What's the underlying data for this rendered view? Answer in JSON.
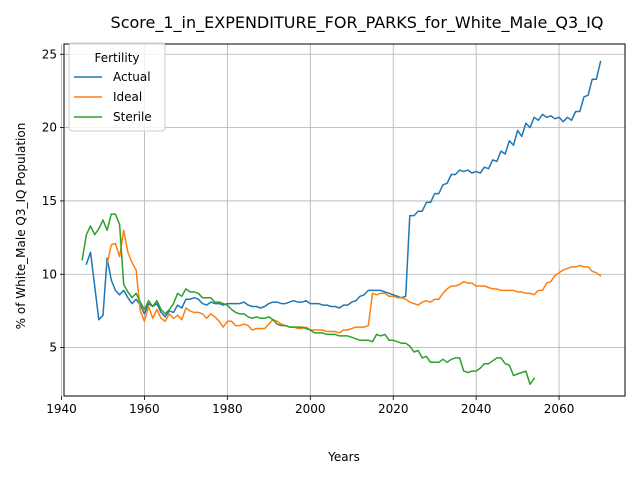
{
  "chart_data": {
    "type": "line",
    "title": "Score_1_in_EXPENDITURE_FOR_PARKS_for_White_Male_Q3_IQ",
    "xlabel": "Years",
    "ylabel": "% of White_Male Q3_IQ Population",
    "xlim": [
      1940.6,
      2075.9
    ],
    "ylim": [
      1.7,
      25.7
    ],
    "xticks": [
      1940,
      1960,
      1980,
      2000,
      2020,
      2040,
      2060
    ],
    "yticks": [
      5,
      10,
      15,
      20,
      25
    ],
    "grid": true,
    "legend": {
      "title": "Fertility",
      "placement": "upper-left"
    },
    "series": [
      {
        "name": "Actual",
        "color": "#1f77b4",
        "x": [
          1946,
          1947,
          1948,
          1949,
          1950,
          1951,
          1952,
          1953,
          1954,
          1955,
          1956,
          1957,
          1958,
          1959,
          1960,
          1961,
          1962,
          1963,
          1964,
          1965,
          1966,
          1967,
          1968,
          1969,
          1970,
          1971,
          1972,
          1973,
          1974,
          1975,
          1976,
          1977,
          1978,
          1979,
          1980,
          1981,
          1982,
          1983,
          1984,
          1985,
          1986,
          1987,
          1988,
          1989,
          1990,
          1991,
          1992,
          1993,
          1994,
          1995,
          1996,
          1997,
          1998,
          1999,
          2000,
          2001,
          2002,
          2003,
          2004,
          2005,
          2006,
          2007,
          2008,
          2009,
          2010,
          2011,
          2012,
          2013,
          2014,
          2015,
          2016,
          2017,
          2018,
          2019,
          2020,
          2021,
          2022,
          2023,
          2024,
          2025,
          2026,
          2027,
          2028,
          2029,
          2030,
          2031,
          2032,
          2033,
          2034,
          2035,
          2036,
          2037,
          2038,
          2039,
          2040,
          2041,
          2042,
          2043,
          2044,
          2045,
          2046,
          2047,
          2048,
          2049,
          2050,
          2051,
          2052,
          2053,
          2054,
          2055,
          2056,
          2057,
          2058,
          2059,
          2060,
          2061,
          2062,
          2063,
          2064,
          2065,
          2066,
          2067,
          2068,
          2069,
          2070
        ],
        "y": [
          10.7,
          11.5,
          9.2,
          6.9,
          7.2,
          11.1,
          9.6,
          8.9,
          8.6,
          8.9,
          8.4,
          8.0,
          8.3,
          7.9,
          7.3,
          8.0,
          7.8,
          8.0,
          7.4,
          7.1,
          7.5,
          7.4,
          7.9,
          7.7,
          8.3,
          8.3,
          8.4,
          8.3,
          8.0,
          7.9,
          8.1,
          8.0,
          8.0,
          7.9,
          8.0,
          8.0,
          8.0,
          8.0,
          8.1,
          7.9,
          7.8,
          7.8,
          7.7,
          7.8,
          8.0,
          8.1,
          8.1,
          8.0,
          8.0,
          8.1,
          8.2,
          8.1,
          8.1,
          8.2,
          8.0,
          8.0,
          8.0,
          7.9,
          7.9,
          7.8,
          7.8,
          7.7,
          7.9,
          7.9,
          8.1,
          8.2,
          8.5,
          8.6,
          8.9,
          8.9,
          8.9,
          8.9,
          8.8,
          8.7,
          8.6,
          8.5,
          8.4,
          8.5,
          14.0,
          14.0,
          14.3,
          14.3,
          14.9,
          14.9,
          15.5,
          15.5,
          16.1,
          16.2,
          16.8,
          16.8,
          17.1,
          17.0,
          17.1,
          16.9,
          17.0,
          16.9,
          17.3,
          17.2,
          17.8,
          17.7,
          18.4,
          18.2,
          19.1,
          18.8,
          19.8,
          19.4,
          20.3,
          20.0,
          20.7,
          20.5,
          20.9,
          20.7,
          20.8,
          20.6,
          20.7,
          20.4,
          20.7,
          20.5,
          21.1,
          21.1,
          22.1,
          22.2,
          23.3,
          23.3,
          24.5
        ]
      },
      {
        "name": "Ideal",
        "color": "#ff7f0e",
        "x": [
          1951,
          1952,
          1953,
          1954,
          1955,
          1956,
          1957,
          1958,
          1959,
          1960,
          1961,
          1962,
          1963,
          1964,
          1965,
          1966,
          1967,
          1968,
          1969,
          1970,
          1971,
          1972,
          1973,
          1974,
          1975,
          1976,
          1977,
          1978,
          1979,
          1980,
          1981,
          1982,
          1983,
          1984,
          1985,
          1986,
          1987,
          1988,
          1989,
          1990,
          1991,
          1992,
          1993,
          1994,
          1995,
          1996,
          1997,
          1998,
          1999,
          2000,
          2001,
          2002,
          2003,
          2004,
          2005,
          2006,
          2007,
          2008,
          2009,
          2010,
          2011,
          2012,
          2013,
          2014,
          2015,
          2016,
          2017,
          2018,
          2019,
          2020,
          2021,
          2022,
          2023,
          2024,
          2025,
          2026,
          2027,
          2028,
          2029,
          2030,
          2031,
          2032,
          2033,
          2034,
          2035,
          2036,
          2037,
          2038,
          2039,
          2040,
          2041,
          2042,
          2043,
          2044,
          2045,
          2046,
          2047,
          2048,
          2049,
          2050,
          2051,
          2052,
          2053,
          2054,
          2055,
          2056,
          2057,
          2058,
          2059,
          2060,
          2061,
          2062,
          2063,
          2064,
          2065,
          2066,
          2067,
          2068,
          2069,
          2070
        ],
        "y": [
          10.7,
          12.0,
          12.1,
          11.2,
          13.0,
          11.5,
          10.8,
          10.3,
          7.5,
          6.8,
          7.8,
          7.0,
          7.6,
          7.0,
          6.8,
          7.3,
          7.0,
          7.2,
          6.9,
          7.7,
          7.5,
          7.4,
          7.4,
          7.3,
          7.0,
          7.3,
          7.1,
          6.8,
          6.4,
          6.8,
          6.8,
          6.5,
          6.5,
          6.6,
          6.5,
          6.2,
          6.3,
          6.3,
          6.3,
          6.6,
          6.9,
          6.8,
          6.6,
          6.5,
          6.4,
          6.4,
          6.3,
          6.3,
          6.4,
          6.2,
          6.2,
          6.2,
          6.2,
          6.1,
          6.1,
          6.1,
          6.0,
          6.2,
          6.2,
          6.3,
          6.4,
          6.4,
          6.4,
          6.5,
          8.7,
          8.6,
          8.7,
          8.7,
          8.5,
          8.5,
          8.4,
          8.4,
          8.3,
          8.1,
          8.0,
          7.9,
          8.1,
          8.2,
          8.1,
          8.3,
          8.3,
          8.7,
          9.0,
          9.2,
          9.2,
          9.3,
          9.5,
          9.4,
          9.4,
          9.2,
          9.2,
          9.2,
          9.1,
          9.0,
          9.0,
          8.9,
          8.9,
          8.9,
          8.9,
          8.8,
          8.8,
          8.7,
          8.7,
          8.6,
          8.9,
          8.9,
          9.4,
          9.5,
          9.9,
          10.1,
          10.3,
          10.4,
          10.5,
          10.5,
          10.6,
          10.5,
          10.5,
          10.2,
          10.1,
          9.9
        ]
      },
      {
        "name": "Sterile",
        "color": "#2ca02c",
        "x": [
          1945,
          1946,
          1947,
          1948,
          1949,
          1950,
          1951,
          1952,
          1953,
          1954,
          1955,
          1956,
          1957,
          1958,
          1959,
          1960,
          1961,
          1962,
          1963,
          1964,
          1965,
          1966,
          1967,
          1968,
          1969,
          1970,
          1971,
          1972,
          1973,
          1974,
          1975,
          1976,
          1977,
          1978,
          1979,
          1980,
          1981,
          1982,
          1983,
          1984,
          1985,
          1986,
          1987,
          1988,
          1989,
          1990,
          1991,
          1992,
          1993,
          1994,
          1995,
          1996,
          1997,
          1998,
          1999,
          2000,
          2001,
          2002,
          2003,
          2004,
          2005,
          2006,
          2007,
          2008,
          2009,
          2010,
          2011,
          2012,
          2013,
          2014,
          2015,
          2016,
          2017,
          2018,
          2019,
          2020,
          2021,
          2022,
          2023,
          2024,
          2025,
          2026,
          2027,
          2028,
          2029,
          2030,
          2031,
          2032,
          2033,
          2034,
          2035,
          2036,
          2037,
          2038,
          2039,
          2040,
          2041,
          2042,
          2043,
          2044,
          2045,
          2046,
          2047,
          2048,
          2049,
          2050,
          2051,
          2052,
          2053,
          2054
        ],
        "y": [
          11.0,
          12.7,
          13.3,
          12.7,
          13.1,
          13.7,
          13.0,
          14.1,
          14.1,
          13.4,
          9.3,
          8.8,
          8.4,
          8.7,
          8.1,
          7.6,
          8.2,
          7.8,
          8.2,
          7.6,
          7.3,
          7.6,
          8.0,
          8.7,
          8.5,
          9.0,
          8.8,
          8.8,
          8.7,
          8.4,
          8.4,
          8.4,
          8.1,
          8.1,
          8.0,
          7.9,
          7.6,
          7.4,
          7.3,
          7.3,
          7.1,
          7.0,
          7.1,
          7.0,
          7.0,
          7.1,
          6.9,
          6.6,
          6.5,
          6.5,
          6.4,
          6.4,
          6.4,
          6.4,
          6.3,
          6.2,
          6.0,
          6.0,
          6.0,
          5.9,
          5.9,
          5.9,
          5.8,
          5.8,
          5.8,
          5.7,
          5.6,
          5.5,
          5.5,
          5.5,
          5.4,
          5.9,
          5.8,
          5.9,
          5.5,
          5.5,
          5.4,
          5.3,
          5.3,
          5.1,
          4.7,
          4.8,
          4.3,
          4.4,
          4.0,
          4.0,
          4.0,
          4.2,
          4.0,
          4.2,
          4.3,
          4.3,
          3.4,
          3.3,
          3.4,
          3.4,
          3.6,
          3.9,
          3.9,
          4.1,
          4.3,
          4.3,
          3.9,
          3.8,
          3.1,
          3.2,
          3.3,
          3.4,
          2.5,
          2.9
        ]
      }
    ]
  }
}
